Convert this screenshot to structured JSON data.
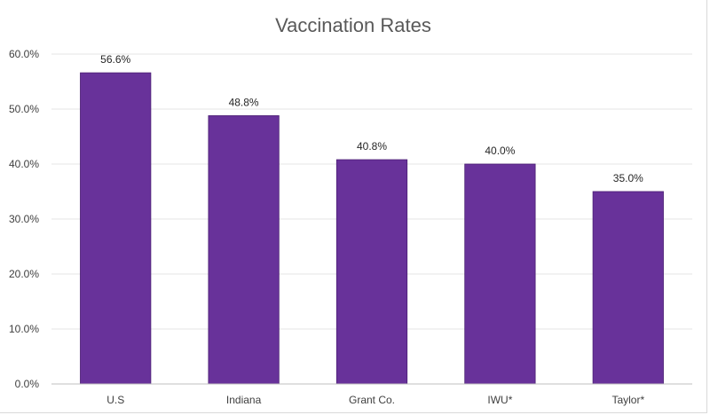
{
  "chart_data": {
    "type": "bar",
    "title": "Vaccination Rates",
    "xlabel": "",
    "ylabel": "",
    "categories": [
      "U.S",
      "Indiana",
      "Grant Co.",
      "IWU*",
      "Taylor*"
    ],
    "values": [
      56.6,
      48.8,
      40.8,
      40.0,
      35.0
    ],
    "data_labels": [
      "56.6%",
      "48.8%",
      "40.8%",
      "40.0%",
      "35.0%"
    ],
    "ylim": [
      0,
      60
    ],
    "yticks": [
      0,
      10,
      20,
      30,
      40,
      50,
      60
    ],
    "ytick_labels": [
      "0.0%",
      "10.0%",
      "20.0%",
      "30.0%",
      "40.0%",
      "50.0%",
      "60.0%"
    ],
    "grid": true,
    "legend": "none",
    "bar_color": "#68329a"
  }
}
